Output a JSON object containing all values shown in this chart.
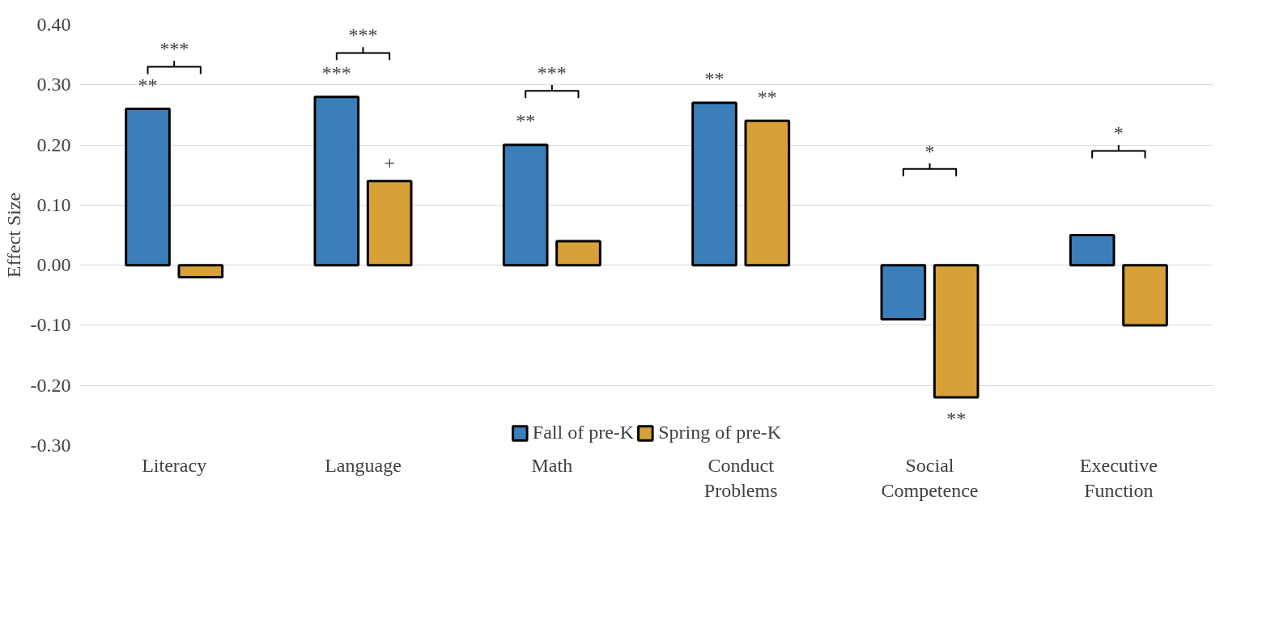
{
  "chart_data": {
    "type": "bar",
    "ylabel": "Effect Size",
    "categories": [
      "Literacy",
      "Language",
      "Math",
      "Conduct\nProblems",
      "Social\nCompetence",
      "Executive\nFunction"
    ],
    "series": [
      {
        "name": "Fall of pre-K",
        "color": "#3a7fba",
        "values": [
          0.26,
          0.28,
          0.2,
          0.27,
          -0.09,
          0.05
        ]
      },
      {
        "name": "Spring of pre-K",
        "color": "#d8a038",
        "values": [
          -0.02,
          0.14,
          0.04,
          0.24,
          -0.22,
          -0.1
        ]
      }
    ],
    "ylim": [
      -0.3,
      0.4
    ],
    "yticks": [
      {
        "value": -0.3,
        "label": "-0.30"
      },
      {
        "value": -0.2,
        "label": "-0.20"
      },
      {
        "value": -0.1,
        "label": "-0.10"
      },
      {
        "value": 0,
        "label": "0.00"
      },
      {
        "value": 0.1,
        "label": "0.10"
      },
      {
        "value": 0.2,
        "label": "0.20"
      },
      {
        "value": 0.3,
        "label": "0.30"
      },
      {
        "value": 0.4,
        "label": "0.40"
      }
    ],
    "grid": "y",
    "legend": "bottom",
    "annotations": [
      "***",
      "**",
      "***",
      "***",
      "+",
      "***",
      "**",
      "**",
      "**",
      "*",
      "**",
      "*"
    ]
  }
}
